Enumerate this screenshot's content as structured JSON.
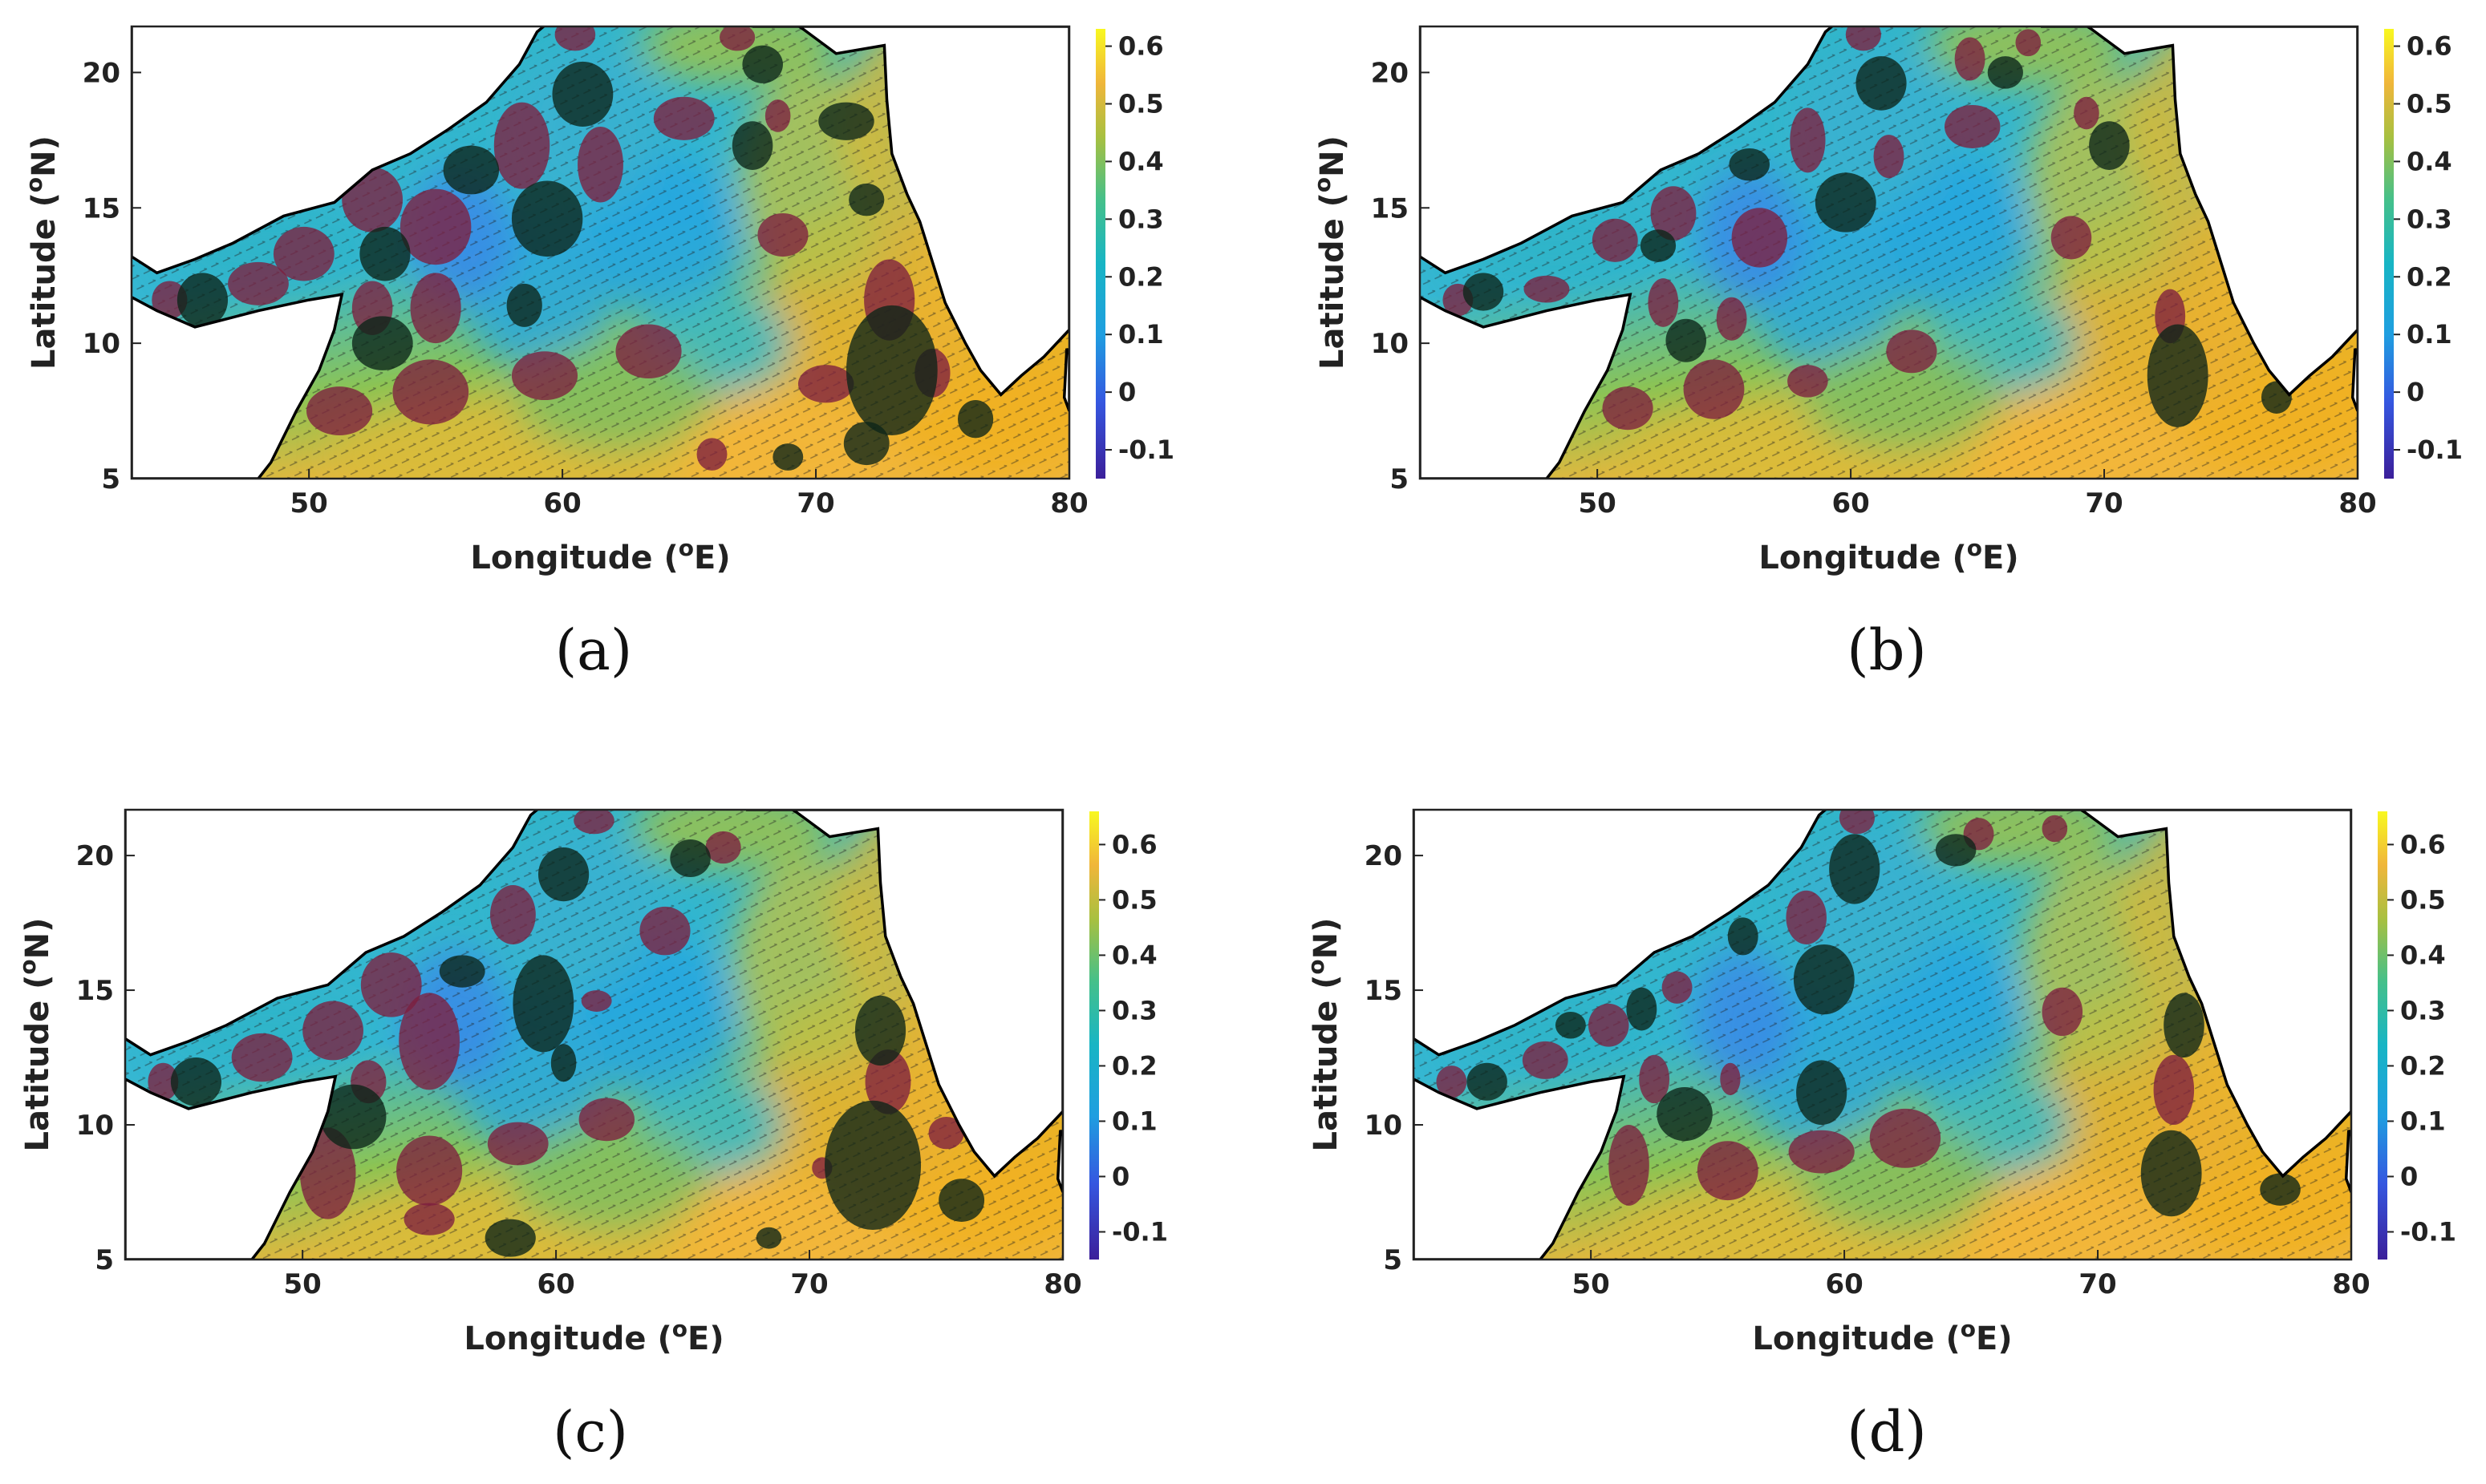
{
  "chart_data": [
    {
      "panel_label": "(a)",
      "type": "heatmap",
      "xlabel": "Longitude (",
      "xlabel_sup": "o",
      "xlabel_unit": "E)",
      "ylabel": "Latitude (",
      "ylabel_sup": "o",
      "ylabel_unit": "N)",
      "xlim": [
        43,
        80
      ],
      "ylim": [
        5,
        21.7
      ],
      "xticks": [
        50,
        60,
        70,
        80
      ],
      "yticks": [
        5,
        10,
        15,
        20
      ],
      "colorbar": {
        "range": [
          -0.15,
          0.63
        ],
        "ticks": [
          "0.6",
          "0.5",
          "0.4",
          "0.3",
          "0.2",
          "0.1",
          "0",
          "-0.1"
        ],
        "tick_values": [
          0.6,
          0.5,
          0.4,
          0.3,
          0.2,
          0.1,
          0,
          -0.1
        ]
      }
    },
    {
      "panel_label": "(b)",
      "type": "heatmap",
      "xlabel": "Longitude (",
      "xlabel_sup": "o",
      "xlabel_unit": "E)",
      "ylabel": "Latitude (",
      "ylabel_sup": "o",
      "ylabel_unit": "N)",
      "xlim": [
        43,
        80
      ],
      "ylim": [
        5,
        21.7
      ],
      "xticks": [
        50,
        60,
        70,
        80
      ],
      "yticks": [
        5,
        10,
        15,
        20
      ],
      "colorbar": {
        "range": [
          -0.15,
          0.63
        ],
        "ticks": [
          "0.6",
          "0.5",
          "0.4",
          "0.3",
          "0.2",
          "0.1",
          "0",
          "-0.1"
        ],
        "tick_values": [
          0.6,
          0.5,
          0.4,
          0.3,
          0.2,
          0.1,
          0,
          -0.1
        ]
      }
    },
    {
      "panel_label": "(c)",
      "type": "heatmap",
      "xlabel": "Longitude (",
      "xlabel_sup": "o",
      "xlabel_unit": "E)",
      "ylabel": "Latitude (",
      "ylabel_sup": "o",
      "ylabel_unit": "N)",
      "xlim": [
        43,
        80
      ],
      "ylim": [
        5,
        21.7
      ],
      "xticks": [
        50,
        60,
        70,
        80
      ],
      "yticks": [
        5,
        10,
        15,
        20
      ],
      "colorbar": {
        "range": [
          -0.15,
          0.66
        ],
        "ticks": [
          "0.6",
          "0.5",
          "0.4",
          "0.3",
          "0.2",
          "0.1",
          "0",
          "-0.1"
        ],
        "tick_values": [
          0.6,
          0.5,
          0.4,
          0.3,
          0.2,
          0.1,
          0,
          -0.1
        ]
      }
    },
    {
      "panel_label": "(d)",
      "type": "heatmap",
      "xlabel": "Longitude (",
      "xlabel_sup": "o",
      "xlabel_unit": "E)",
      "ylabel": "Latitude (",
      "ylabel_sup": "o",
      "ylabel_unit": "N)",
      "xlim": [
        43,
        80
      ],
      "ylim": [
        5,
        21.7
      ],
      "xticks": [
        50,
        60,
        70,
        80
      ],
      "yticks": [
        5,
        10,
        15,
        20
      ],
      "colorbar": {
        "range": [
          -0.15,
          0.66
        ],
        "ticks": [
          "0.6",
          "0.5",
          "0.4",
          "0.3",
          "0.2",
          "0.1",
          "0",
          "-0.1"
        ],
        "tick_values": [
          0.6,
          0.5,
          0.4,
          0.3,
          0.2,
          0.1,
          0,
          -0.1
        ]
      }
    }
  ],
  "colors": {
    "cyclonic_eddy": "#7d1f3f",
    "anticyclonic_eddy": "#0c2418",
    "field_low": "#2bb2d6",
    "field_mid": "#4fc0a0",
    "field_high": "#f0b63a",
    "land": "#ffffff"
  }
}
